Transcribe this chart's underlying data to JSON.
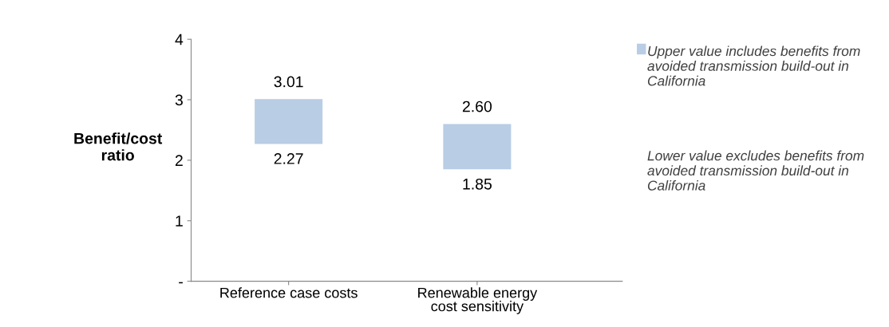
{
  "chart_data": {
    "type": "bar",
    "ylabel": "Benefit/cost ratio",
    "categories": [
      "Reference case costs",
      "Renewable energy cost sensitivity"
    ],
    "series": [
      {
        "name": "Upper value includes benefits from avoided transmission build-out in California",
        "color": "#b9cde5",
        "base": [
          2.27,
          1.85
        ],
        "values": [
          0.74,
          0.75
        ]
      }
    ],
    "ylim": [
      0,
      4
    ],
    "yticks": [
      {
        "value": 0,
        "label": "-"
      },
      1,
      2,
      3,
      4
    ],
    "grid": false,
    "legend": "right",
    "annotations": [
      {
        "text": "3.01",
        "x": "Reference case costs",
        "y": 3.01
      },
      {
        "text": "2.27",
        "x": "Reference case costs",
        "y": 2.27
      },
      {
        "text": "2.60",
        "x": "Renewable energy cost sensitivity",
        "y": 2.6
      },
      {
        "text": "1.85",
        "x": "Renewable energy cost sensitivity",
        "y": 1.85
      },
      "Lower value excludes benefits from avoided transmission build-out in California"
    ]
  }
}
